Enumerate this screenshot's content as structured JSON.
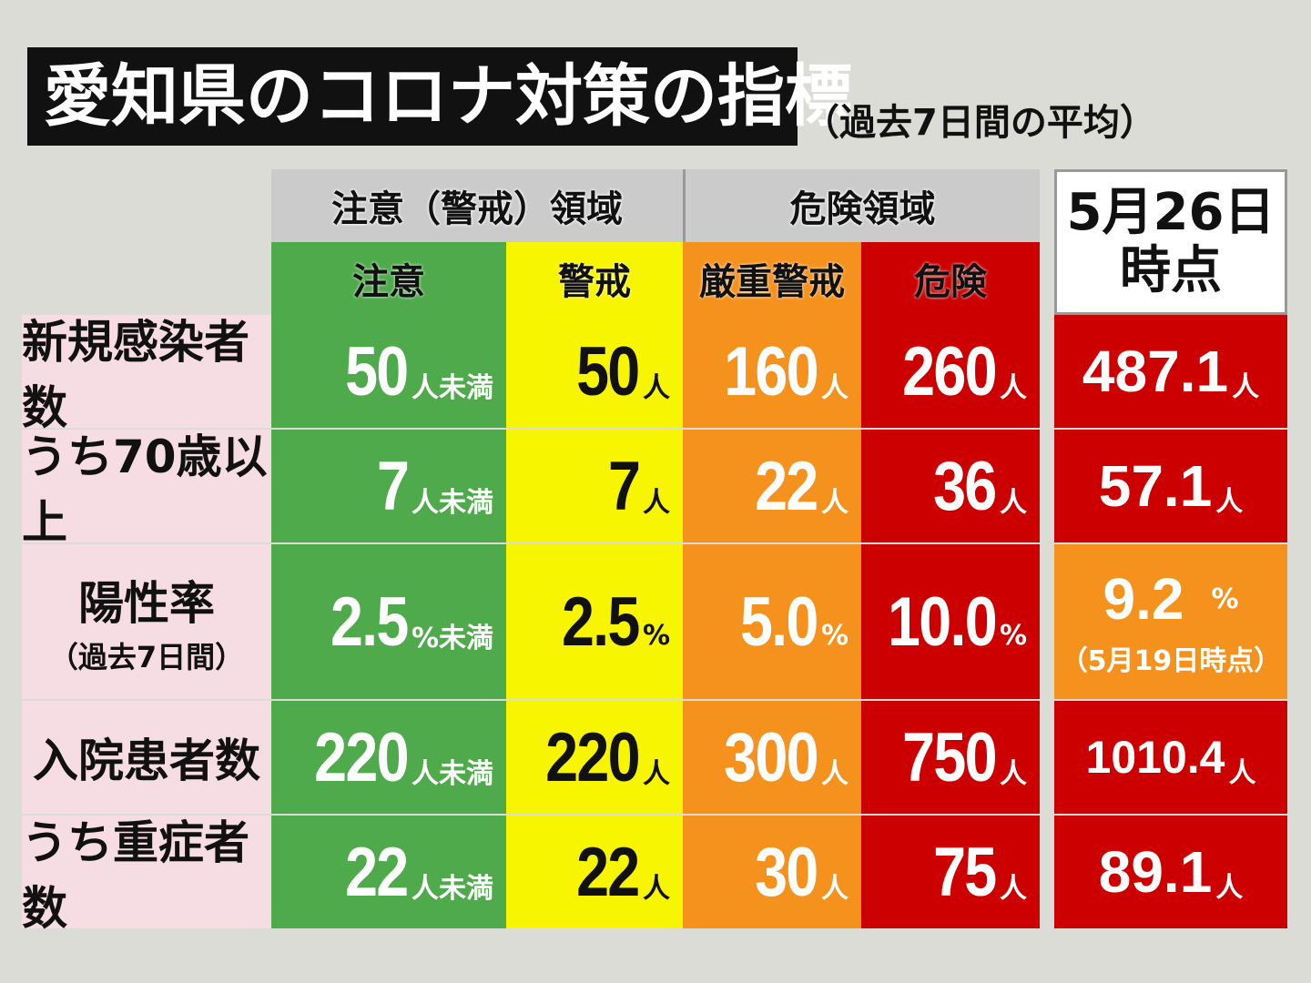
{
  "title": "愛知県のコロナ対策の指標",
  "subtitle": "（過去7日間の平均）",
  "header": {
    "caution_zone": "注意（警戒）領域",
    "danger_zone": "危険領域",
    "date_line1": "5月26日",
    "date_line2": "時点"
  },
  "levels": {
    "caution": "注意",
    "warning": "警戒",
    "severe": "厳重警戒",
    "danger": "危険"
  },
  "rows": [
    {
      "label": "新規感染者数",
      "caution": {
        "v": "50",
        "u": "人未満"
      },
      "warning": {
        "v": "50",
        "u": "人"
      },
      "severe": {
        "v": "160",
        "u": "人"
      },
      "danger": {
        "v": "260",
        "u": "人"
      },
      "current": {
        "v": "487.1",
        "u": "人"
      }
    },
    {
      "label": "うち70歳以上",
      "caution": {
        "v": "7",
        "u": "人未満"
      },
      "warning": {
        "v": "7",
        "u": "人"
      },
      "severe": {
        "v": "22",
        "u": "人"
      },
      "danger": {
        "v": "36",
        "u": "人"
      },
      "current": {
        "v": "57.1",
        "u": "人"
      }
    },
    {
      "label": "陽性率",
      "sublabel": "（過去7日間）",
      "caution": {
        "v": "2.5",
        "u": "%未満"
      },
      "warning": {
        "v": "2.5",
        "u": "%"
      },
      "severe": {
        "v": "5.0",
        "u": "%"
      },
      "danger": {
        "v": "10.0",
        "u": "%"
      },
      "current": {
        "v": "9.2",
        "u": "%",
        "note": "（5月19日時点）"
      }
    },
    {
      "label": "入院患者数",
      "caution": {
        "v": "220",
        "u": "人未満"
      },
      "warning": {
        "v": "220",
        "u": "人"
      },
      "severe": {
        "v": "300",
        "u": "人"
      },
      "danger": {
        "v": "750",
        "u": "人"
      },
      "current": {
        "v": "1010.4",
        "u": "人"
      }
    },
    {
      "label": "うち重症者数",
      "caution": {
        "v": "22",
        "u": "人未満"
      },
      "warning": {
        "v": "22",
        "u": "人"
      },
      "severe": {
        "v": "30",
        "u": "人"
      },
      "danger": {
        "v": "75",
        "u": "人"
      },
      "current": {
        "v": "89.1",
        "u": "人"
      }
    }
  ],
  "colors": {
    "caution": "#4faa4b",
    "warning": "#f7f500",
    "severe": "#f5921e",
    "danger": "#cc0000"
  }
}
